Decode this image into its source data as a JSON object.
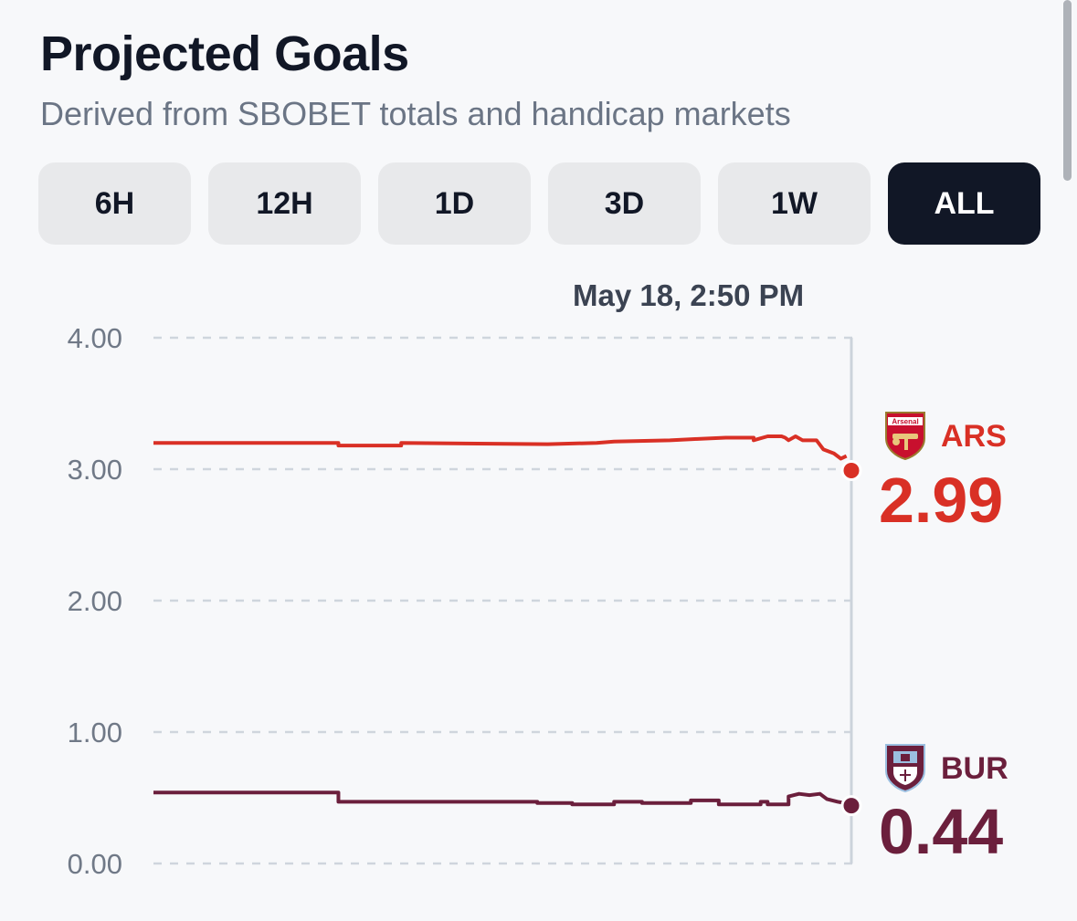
{
  "header": {
    "title": "Projected Goals",
    "subtitle": "Derived from SBOBET totals and handicap markets"
  },
  "range_selector": {
    "options": [
      "6H",
      "12H",
      "1D",
      "3D",
      "1W",
      "ALL"
    ],
    "selected": "ALL"
  },
  "tooltip": {
    "date": "May 18, 2:50 PM"
  },
  "chart_data": {
    "type": "line",
    "title": "Projected Goals",
    "subtitle": "Derived from SBOBET totals and handicap markets",
    "xlabel": "",
    "ylabel": "",
    "ylim": [
      0,
      4
    ],
    "yticks": [
      "4.00",
      "3.00",
      "2.00",
      "1.00",
      "0.00"
    ],
    "grid": true,
    "x_domain": [
      0,
      100
    ],
    "series": [
      {
        "name": "ARS",
        "color": "#d93025",
        "current_value": "2.99",
        "icon": "arsenal-crest-icon",
        "points": [
          [
            0,
            3.2
          ],
          [
            26.5,
            3.2
          ],
          [
            26.5,
            3.18
          ],
          [
            35.5,
            3.18
          ],
          [
            35.5,
            3.2
          ],
          [
            56.5,
            3.19
          ],
          [
            63.5,
            3.2
          ],
          [
            66,
            3.21
          ],
          [
            74,
            3.22
          ],
          [
            78,
            3.23
          ],
          [
            82,
            3.24
          ],
          [
            86,
            3.24
          ],
          [
            86,
            3.22
          ],
          [
            88,
            3.25
          ],
          [
            90,
            3.25
          ],
          [
            90.5,
            3.24
          ],
          [
            91,
            3.22
          ],
          [
            92,
            3.25
          ],
          [
            93,
            3.22
          ],
          [
            95,
            3.22
          ],
          [
            96,
            3.15
          ],
          [
            97.5,
            3.12
          ],
          [
            98.5,
            3.08
          ],
          [
            99.3,
            3.1
          ],
          [
            100,
            2.99
          ]
        ]
      },
      {
        "name": "BUR",
        "color": "#6b1f3c",
        "current_value": "0.44",
        "icon": "burnley-crest-icon",
        "points": [
          [
            0,
            0.54
          ],
          [
            26.5,
            0.54
          ],
          [
            26.5,
            0.47
          ],
          [
            41,
            0.47
          ],
          [
            55,
            0.47
          ],
          [
            55,
            0.46
          ],
          [
            60,
            0.46
          ],
          [
            60,
            0.45
          ],
          [
            66,
            0.45
          ],
          [
            66,
            0.47
          ],
          [
            70,
            0.47
          ],
          [
            70,
            0.46
          ],
          [
            77,
            0.46
          ],
          [
            77,
            0.48
          ],
          [
            81,
            0.48
          ],
          [
            81,
            0.45
          ],
          [
            87,
            0.45
          ],
          [
            87,
            0.47
          ],
          [
            88,
            0.47
          ],
          [
            88,
            0.45
          ],
          [
            91,
            0.45
          ],
          [
            91,
            0.51
          ],
          [
            92.5,
            0.53
          ],
          [
            94,
            0.52
          ],
          [
            95.5,
            0.53
          ],
          [
            96.5,
            0.49
          ],
          [
            98,
            0.47
          ],
          [
            99,
            0.46
          ],
          [
            100,
            0.44
          ]
        ]
      }
    ]
  }
}
